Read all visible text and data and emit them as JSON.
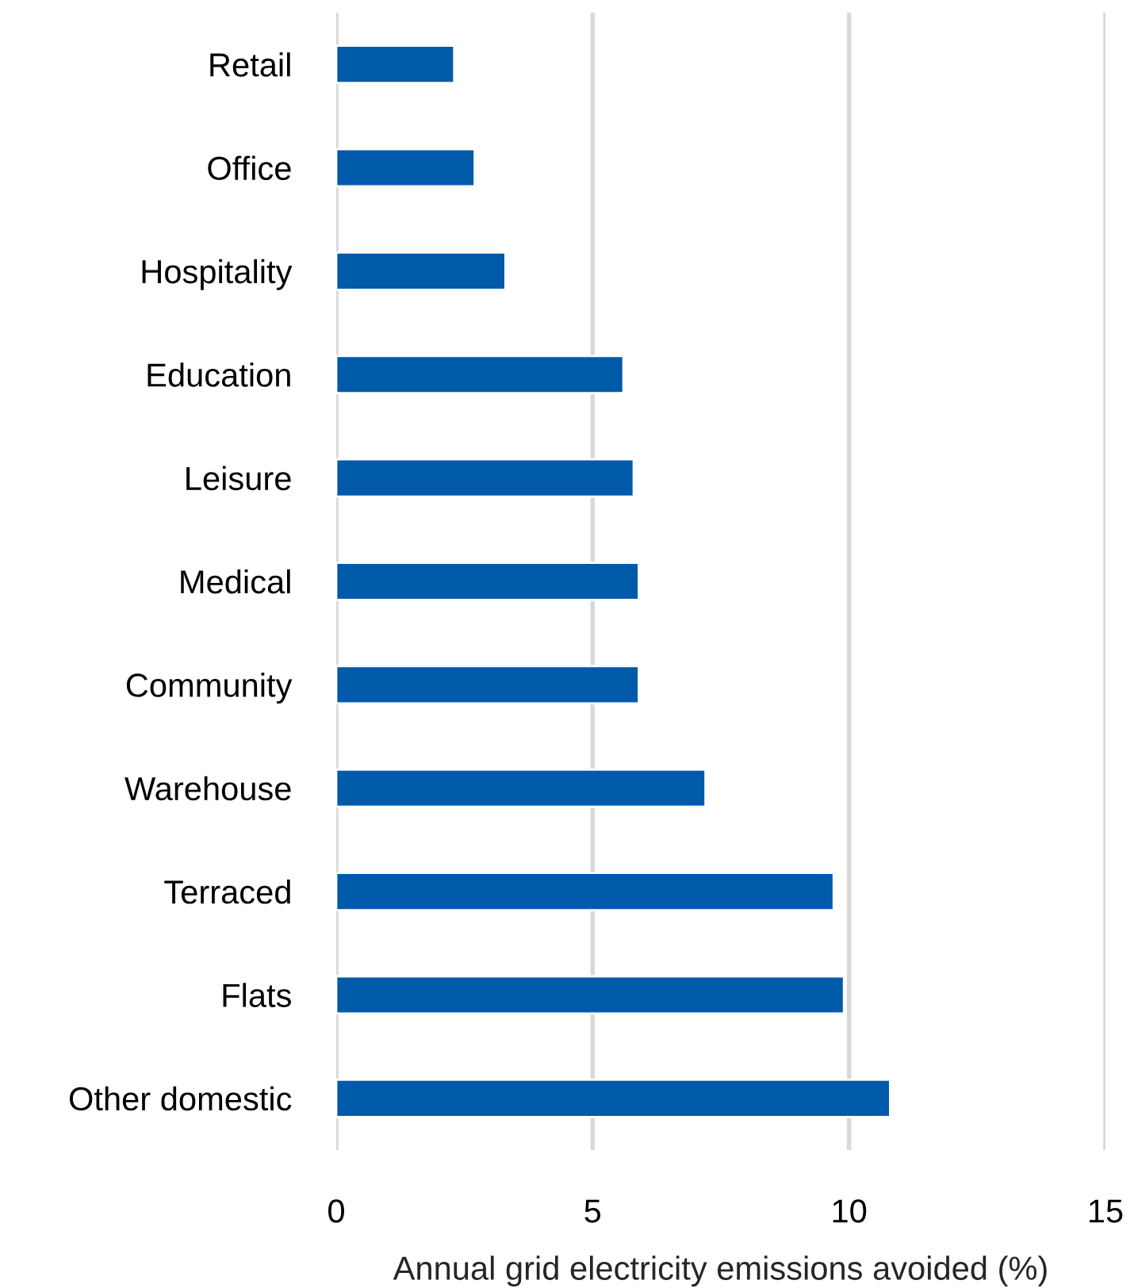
{
  "chart_data": {
    "type": "bar",
    "orientation": "horizontal",
    "xlabel": "Annual grid electricity emissions avoided (%)",
    "categories": [
      "Retail",
      "Office",
      "Hospitality",
      "Education",
      "Leisure",
      "Medical",
      "Community",
      "Warehouse",
      "Terraced",
      "Flats",
      "Other domestic"
    ],
    "values": [
      2.3,
      2.7,
      3.3,
      5.6,
      5.8,
      5.9,
      5.9,
      7.2,
      9.7,
      9.9,
      10.8
    ],
    "color": "#005aaa",
    "xlim": [
      0,
      15
    ],
    "xticks": [
      0,
      5,
      10,
      15
    ],
    "grid": "x",
    "legend": false
  }
}
